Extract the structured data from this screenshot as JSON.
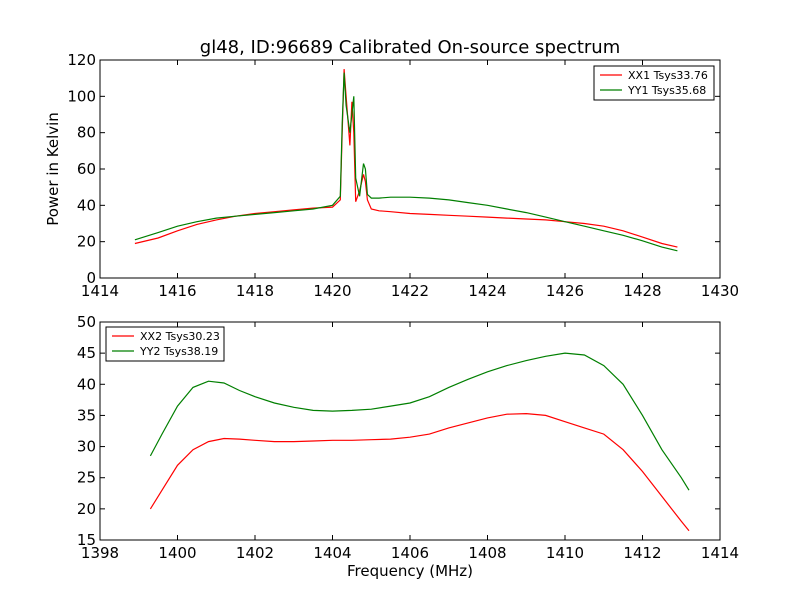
{
  "title": "gl48, ID:96689 Calibrated On-source spectrum",
  "colors": {
    "red": "#ff0000",
    "green": "#007f00"
  },
  "chart_data": [
    {
      "type": "line",
      "title": "gl48, ID:96689 Calibrated On-source spectrum",
      "xlabel": "",
      "ylabel": "Power in Kelvin",
      "xlim": [
        1414,
        1430
      ],
      "ylim": [
        0,
        120
      ],
      "xticks": [
        "1414",
        "1416",
        "1418",
        "1420",
        "1422",
        "1424",
        "1426",
        "1428",
        "1430"
      ],
      "yticks": [
        "0",
        "20",
        "40",
        "60",
        "80",
        "100",
        "120"
      ],
      "legend_position": "top-right",
      "series": [
        {
          "name": "XX1 Tsys33.76",
          "color": "#ff0000",
          "x": [
            1414.9,
            1415.5,
            1416.0,
            1416.5,
            1417.0,
            1417.5,
            1418.0,
            1418.5,
            1419.0,
            1419.5,
            1420.0,
            1420.2,
            1420.25,
            1420.3,
            1420.35,
            1420.45,
            1420.5,
            1420.55,
            1420.6,
            1420.7,
            1420.8,
            1420.85,
            1420.9,
            1421.0,
            1421.2,
            1421.5,
            1422.0,
            1422.5,
            1423.0,
            1423.5,
            1424.0,
            1424.5,
            1425.0,
            1425.5,
            1426.0,
            1426.5,
            1427.0,
            1427.5,
            1428.0,
            1428.5,
            1428.9
          ],
          "y": [
            19,
            22,
            26,
            29.5,
            32,
            34,
            35.5,
            36.5,
            37.5,
            38.5,
            39,
            43,
            80,
            115,
            100,
            73,
            97,
            80,
            42,
            48,
            57,
            53,
            43,
            38,
            37,
            36.5,
            35.5,
            35,
            34.5,
            34,
            33.5,
            33,
            32.5,
            32,
            31,
            30,
            28.5,
            26,
            22.5,
            19,
            17
          ]
        },
        {
          "name": "YY1 Tsys35.68",
          "color": "#007f00",
          "x": [
            1414.9,
            1415.5,
            1416.0,
            1416.5,
            1417.0,
            1417.5,
            1418.0,
            1418.5,
            1419.0,
            1419.5,
            1420.0,
            1420.2,
            1420.25,
            1420.3,
            1420.35,
            1420.45,
            1420.55,
            1420.6,
            1420.7,
            1420.8,
            1420.85,
            1420.9,
            1421.0,
            1421.2,
            1421.5,
            1422.0,
            1422.5,
            1423.0,
            1423.5,
            1424.0,
            1424.5,
            1425.0,
            1425.5,
            1426.0,
            1426.5,
            1427.0,
            1427.5,
            1428.0,
            1428.5,
            1428.9
          ],
          "y": [
            21,
            25,
            28.5,
            31,
            33,
            34,
            35,
            36,
            37,
            38,
            40,
            45,
            85,
            113,
            95,
            80,
            100,
            55,
            45,
            63,
            60,
            46,
            44,
            44,
            44.5,
            44.5,
            44,
            43,
            41.5,
            40,
            38,
            36,
            33.5,
            31,
            28.5,
            26,
            23.5,
            20.5,
            17,
            15
          ]
        }
      ]
    },
    {
      "type": "line",
      "title": "",
      "xlabel": "Frequency (MHz)",
      "ylabel": "",
      "xlim": [
        1398,
        1414
      ],
      "ylim": [
        15,
        50
      ],
      "xticks": [
        "1398",
        "1400",
        "1402",
        "1404",
        "1406",
        "1408",
        "1410",
        "1412",
        "1414"
      ],
      "yticks": [
        "15",
        "20",
        "25",
        "30",
        "35",
        "40",
        "45",
        "50"
      ],
      "legend_position": "top-left",
      "series": [
        {
          "name": "XX2 Tsys30.23",
          "color": "#ff0000",
          "x": [
            1399.3,
            1399.6,
            1400.0,
            1400.4,
            1400.8,
            1401.2,
            1401.6,
            1402.0,
            1402.5,
            1403.0,
            1403.5,
            1404.0,
            1404.5,
            1405.0,
            1405.5,
            1406.0,
            1406.5,
            1407.0,
            1407.5,
            1408.0,
            1408.5,
            1409.0,
            1409.5,
            1410.0,
            1410.5,
            1411.0,
            1411.5,
            1412.0,
            1412.5,
            1413.0,
            1413.2
          ],
          "y": [
            20,
            23,
            27,
            29.5,
            30.8,
            31.3,
            31.2,
            31,
            30.8,
            30.8,
            30.9,
            31,
            31,
            31.1,
            31.2,
            31.5,
            32,
            33,
            33.8,
            34.6,
            35.2,
            35.3,
            35,
            34,
            33,
            32,
            29.5,
            26,
            22,
            18,
            16.5
          ]
        },
        {
          "name": "YY2 Tsys38.19",
          "color": "#007f00",
          "x": [
            1399.3,
            1399.6,
            1400.0,
            1400.4,
            1400.8,
            1401.2,
            1401.6,
            1402.0,
            1402.5,
            1403.0,
            1403.5,
            1404.0,
            1404.5,
            1405.0,
            1405.5,
            1406.0,
            1406.5,
            1407.0,
            1407.5,
            1408.0,
            1408.5,
            1409.0,
            1409.5,
            1410.0,
            1410.5,
            1411.0,
            1411.5,
            1412.0,
            1412.5,
            1413.0,
            1413.2
          ],
          "y": [
            28.5,
            32,
            36.5,
            39.5,
            40.5,
            40.2,
            39,
            38,
            37,
            36.3,
            35.8,
            35.7,
            35.8,
            36,
            36.5,
            37,
            38,
            39.5,
            40.8,
            42,
            43,
            43.8,
            44.5,
            45,
            44.7,
            43,
            40,
            35,
            29.5,
            25,
            23
          ]
        }
      ]
    }
  ]
}
